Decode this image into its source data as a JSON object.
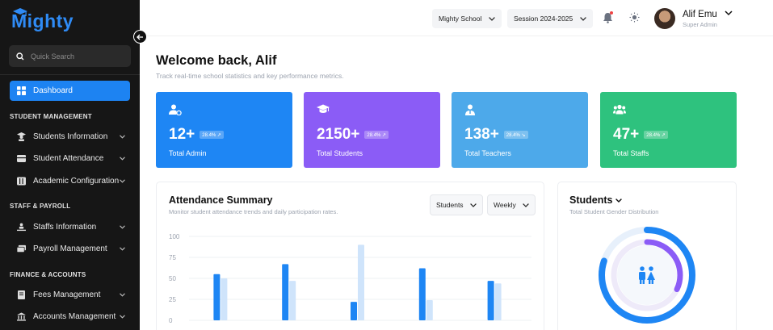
{
  "app": {
    "name": "Mighty"
  },
  "sidebar": {
    "search_placeholder": "Quick Search",
    "active_item": "Dashboard",
    "sections": [
      {
        "title": "STUDENT MANAGEMENT",
        "items": [
          "Students Information",
          "Student Attendance",
          "Academic Configuration"
        ]
      },
      {
        "title": "STAFF & PAYROLL",
        "items": [
          "Staffs Information",
          "Payroll Management"
        ]
      },
      {
        "title": "FINANCE & ACCOUNTS",
        "items": [
          "Fees Management",
          "Accounts Management"
        ]
      }
    ]
  },
  "header": {
    "school_select": "Mighty School",
    "session_select": "Session 2024-2025",
    "user": {
      "name": "Alif Emu",
      "role": "Super Admin"
    }
  },
  "main": {
    "welcome": "Welcome back, Alif",
    "subtitle": "Track real-time school statistics and key performance metrics."
  },
  "stats": [
    {
      "value": "12+",
      "badge": "28.4% ↗",
      "label": "Total Admin",
      "color": "#1e86f4",
      "icon": "admin-icon"
    },
    {
      "value": "2150+",
      "badge": "28.4% ↗",
      "label": "Total Students",
      "color": "#8b5cf6",
      "icon": "graduation-cap-icon"
    },
    {
      "value": "138+",
      "badge": "28.4% ↘",
      "label": "Total Teachers",
      "color": "#4da9ea",
      "icon": "teacher-icon"
    },
    {
      "value": "47+",
      "badge": "28.4% ↗",
      "label": "Total Staffs",
      "color": "#2ec27e",
      "icon": "staff-group-icon"
    }
  ],
  "attendance": {
    "title": "Attendance Summary",
    "subtitle": "Monitor student attendance trends and daily participation rates.",
    "filter_group": "Students",
    "filter_period": "Weekly"
  },
  "gender": {
    "title": "Students",
    "subtitle": "Total Student Gender Distribution"
  },
  "chart_data": {
    "type": "bar",
    "y_ticks": [
      "100",
      "75",
      "50",
      "25",
      "0"
    ],
    "ylim": [
      0,
      100
    ],
    "series": [
      {
        "color": "#1e86f4",
        "values": [
          55,
          67,
          22,
          62,
          47
        ]
      },
      {
        "color": "#cfe4fb",
        "values": [
          50,
          47,
          90,
          24,
          44
        ]
      }
    ]
  },
  "gender_chart": {
    "type": "donut",
    "outer_color": "#1e86f4",
    "outer_fraction": 0.8,
    "inner_color": "#8b5cf6",
    "inner_fraction": 0.32
  }
}
